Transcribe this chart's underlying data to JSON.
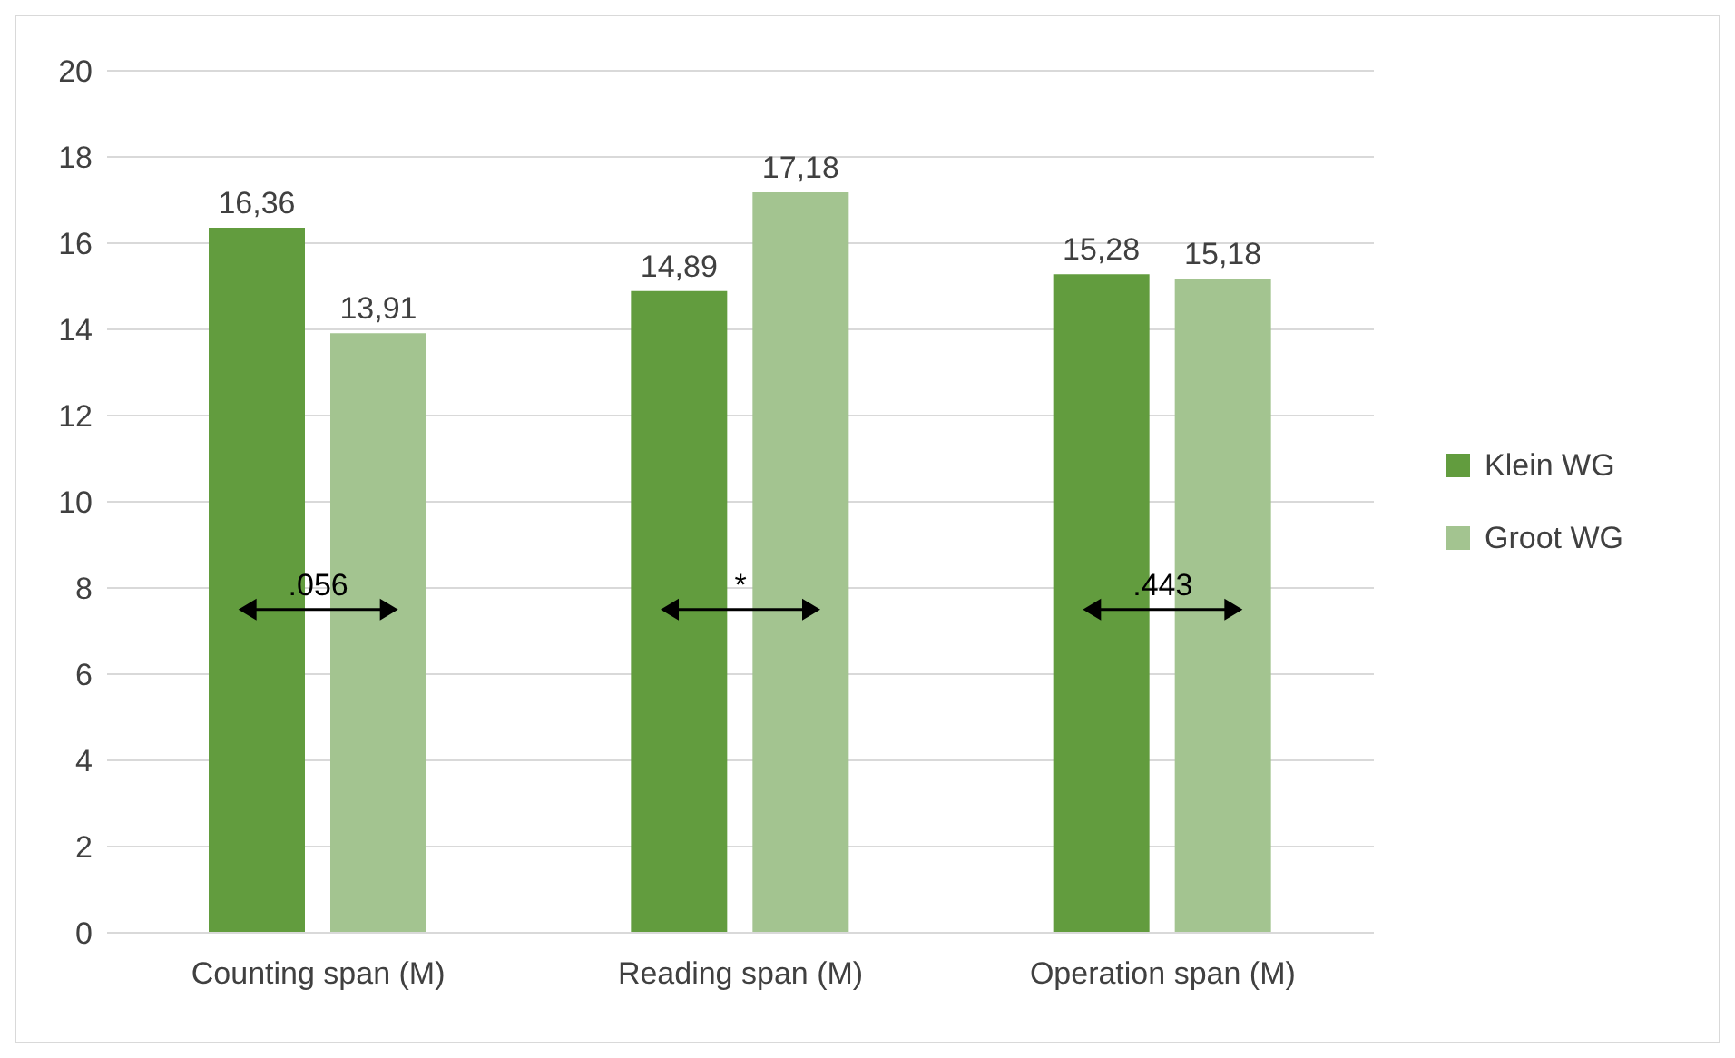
{
  "chart_data": {
    "type": "bar",
    "categories": [
      "Counting span (M)",
      "Reading span (M)",
      "Operation span (M)"
    ],
    "series": [
      {
        "name": "Klein WG",
        "color": "#629c3e",
        "values": [
          16.36,
          14.89,
          15.28
        ],
        "value_labels": [
          "16,36",
          "14,89",
          "15,28"
        ]
      },
      {
        "name": "Groot WG",
        "color": "#a3c490",
        "values": [
          13.91,
          17.18,
          15.18
        ],
        "value_labels": [
          "13,91",
          "17,18",
          "15,18"
        ]
      }
    ],
    "ylim": [
      0,
      20
    ],
    "yticks": [
      0,
      2,
      4,
      6,
      8,
      10,
      12,
      14,
      16,
      18,
      20
    ],
    "grid": "y",
    "legend": "right",
    "annotations": [
      ".056",
      "*",
      ".443"
    ]
  }
}
